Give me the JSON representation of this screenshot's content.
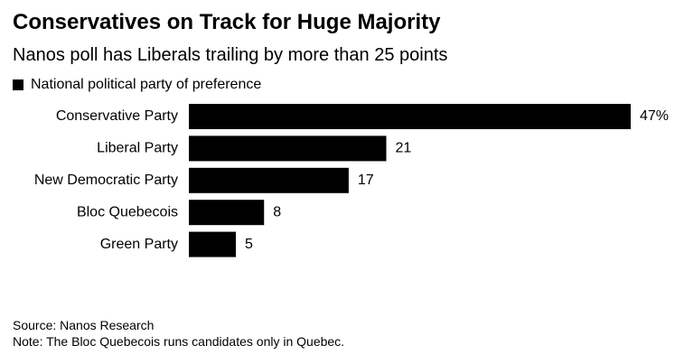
{
  "title": "Conservatives on Track for Huge Majority",
  "subtitle": "Nanos poll has Liberals trailing by more than 25 points",
  "legend_label": "National political party of preference",
  "source": "Source: Nanos Research",
  "note": "Note: The Bloc Quebecois runs candidates only in Quebec.",
  "colors": {
    "bar": "#000000",
    "text": "#000000",
    "background": "#ffffff"
  },
  "chart_data": {
    "type": "bar",
    "orientation": "horizontal",
    "title": "Conservatives on Track for Huge Majority",
    "subtitle": "Nanos poll has Liberals trailing by more than 25 points",
    "categories": [
      "Conservative Party",
      "Liberal Party",
      "New Democratic Party",
      "Bloc Quebecois",
      "Green Party"
    ],
    "series": [
      {
        "name": "National political party of preference",
        "values": [
          47,
          21,
          17,
          8,
          5
        ]
      }
    ],
    "value_labels": [
      "47%",
      "21",
      "17",
      "8",
      "5"
    ],
    "xlim": [
      0,
      47
    ],
    "grid": false,
    "legend_position": "top-left"
  }
}
